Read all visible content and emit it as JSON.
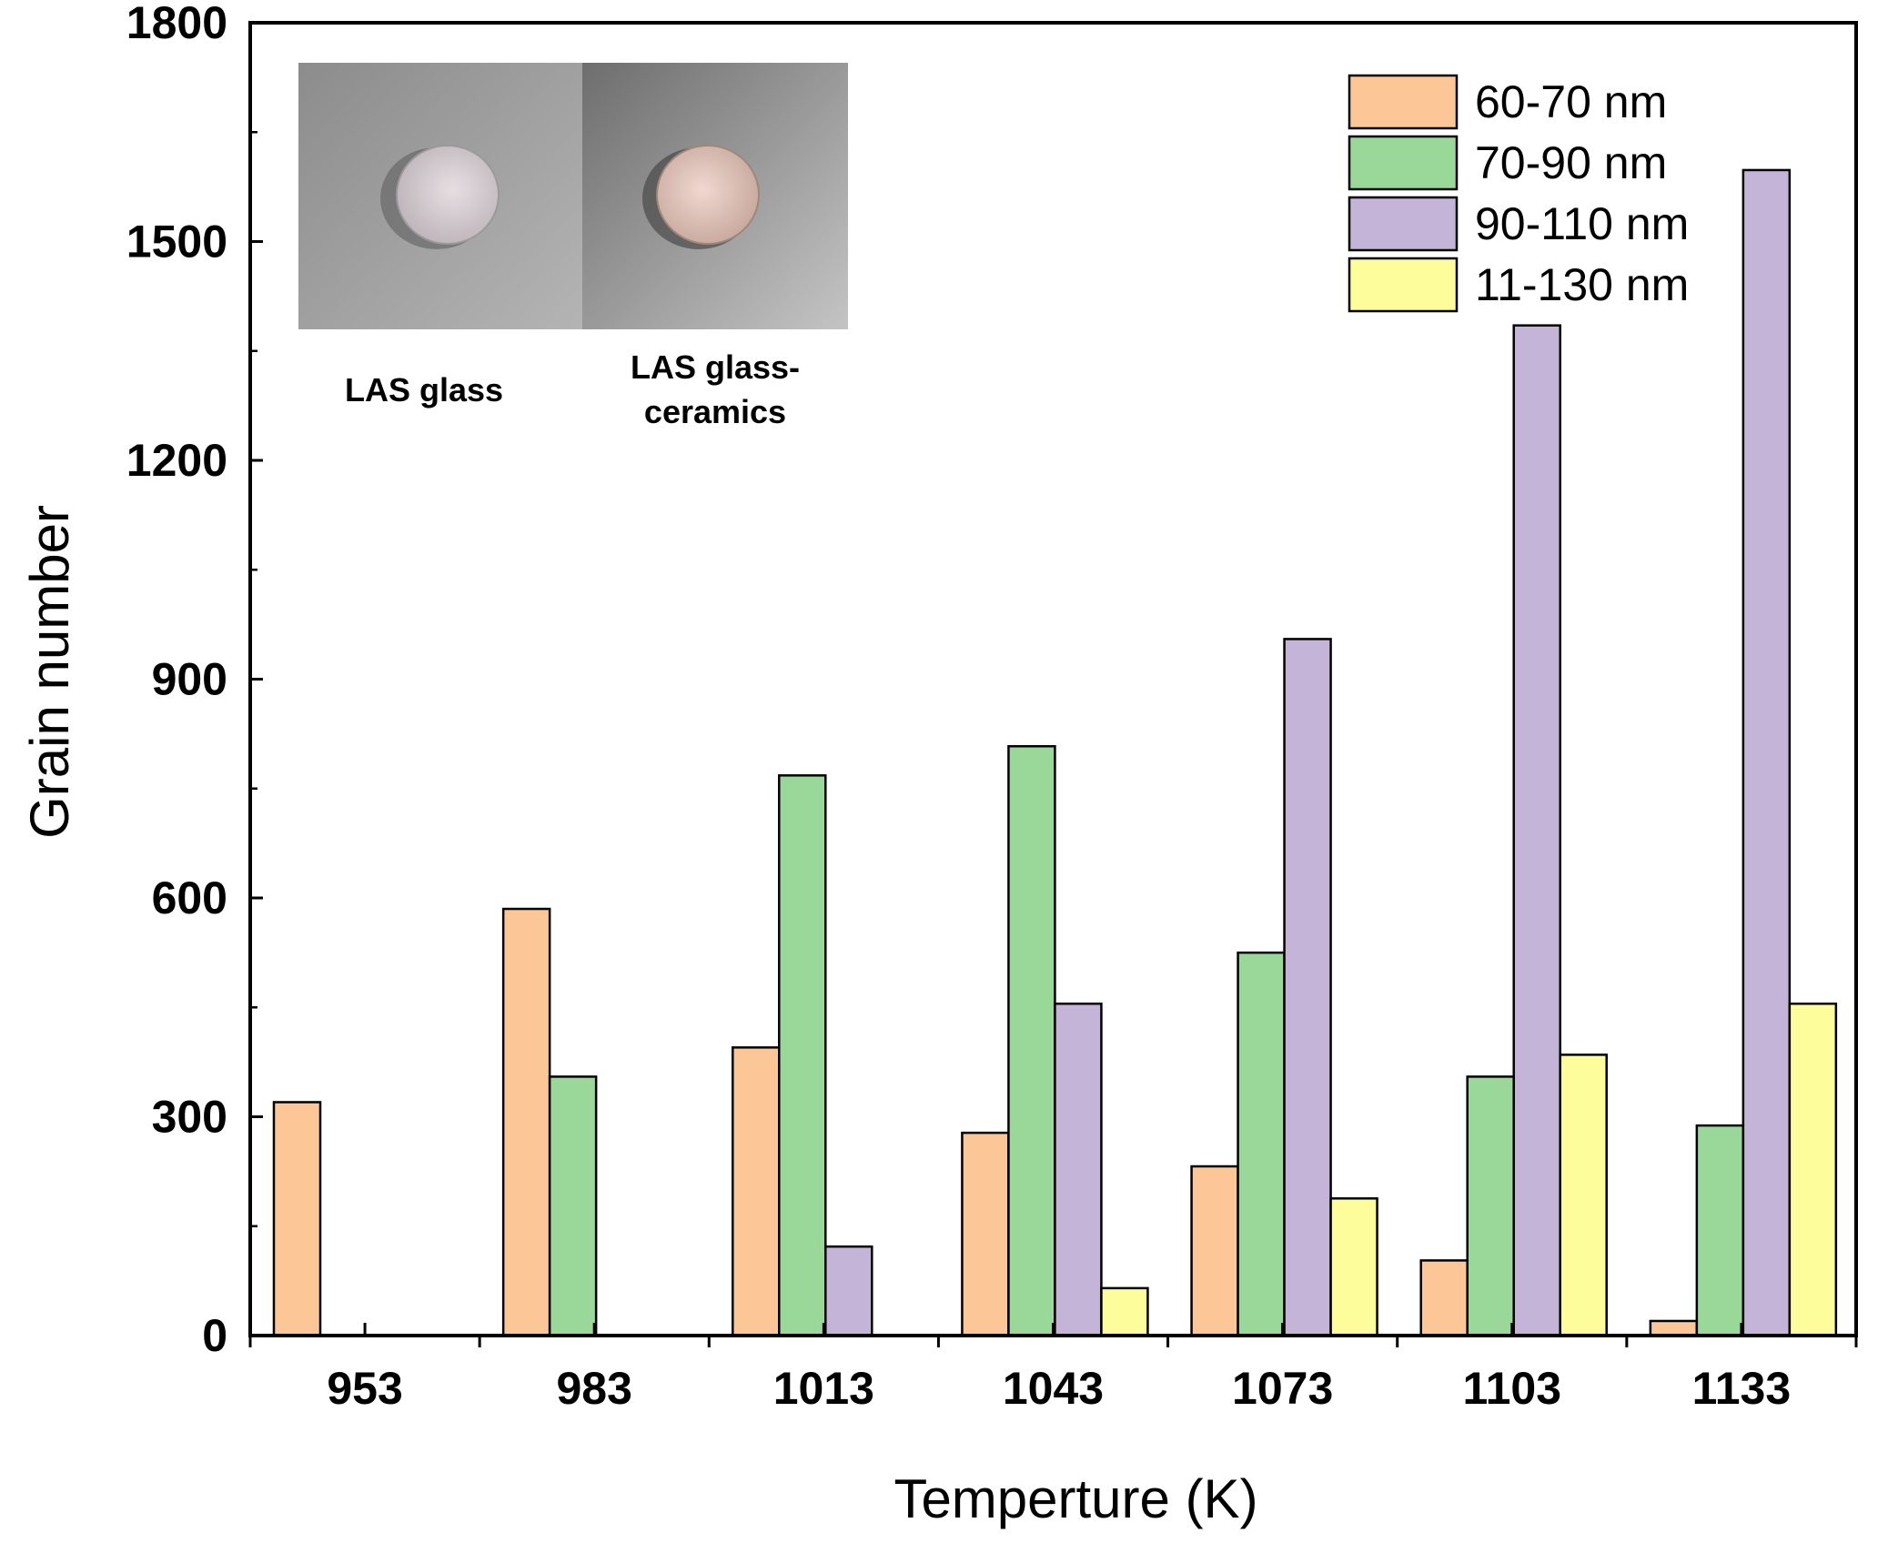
{
  "chart_data": {
    "type": "bar",
    "title": "",
    "xlabel": "Temperture (K)",
    "ylabel": "Grain number",
    "categories": [
      "953",
      "983",
      "1013",
      "1043",
      "1073",
      "1103",
      "1133"
    ],
    "ylim": [
      0,
      1800
    ],
    "yticks": [
      "0",
      "300",
      "600",
      "900",
      "1200",
      "1500",
      "1800"
    ],
    "series": [
      {
        "name": "60-70 nm",
        "color": "#FDC697",
        "values": [
          320,
          585,
          395,
          278,
          232,
          103,
          20
        ]
      },
      {
        "name": "70-90 nm",
        "color": "#9AD89A",
        "values": [
          0,
          355,
          768,
          808,
          525,
          355,
          288
        ]
      },
      {
        "name": "90-110 nm",
        "color": "#C3B4D8",
        "values": [
          0,
          0,
          122,
          455,
          955,
          1385,
          1598
        ]
      },
      {
        "name": "11-130 nm",
        "color": "#FEFD9B",
        "values": [
          0,
          0,
          0,
          65,
          188,
          385,
          455
        ]
      }
    ],
    "legend_position": "top-right",
    "inset": {
      "captions": [
        "LAS glass",
        "LAS glass-",
        "ceramics"
      ]
    }
  }
}
